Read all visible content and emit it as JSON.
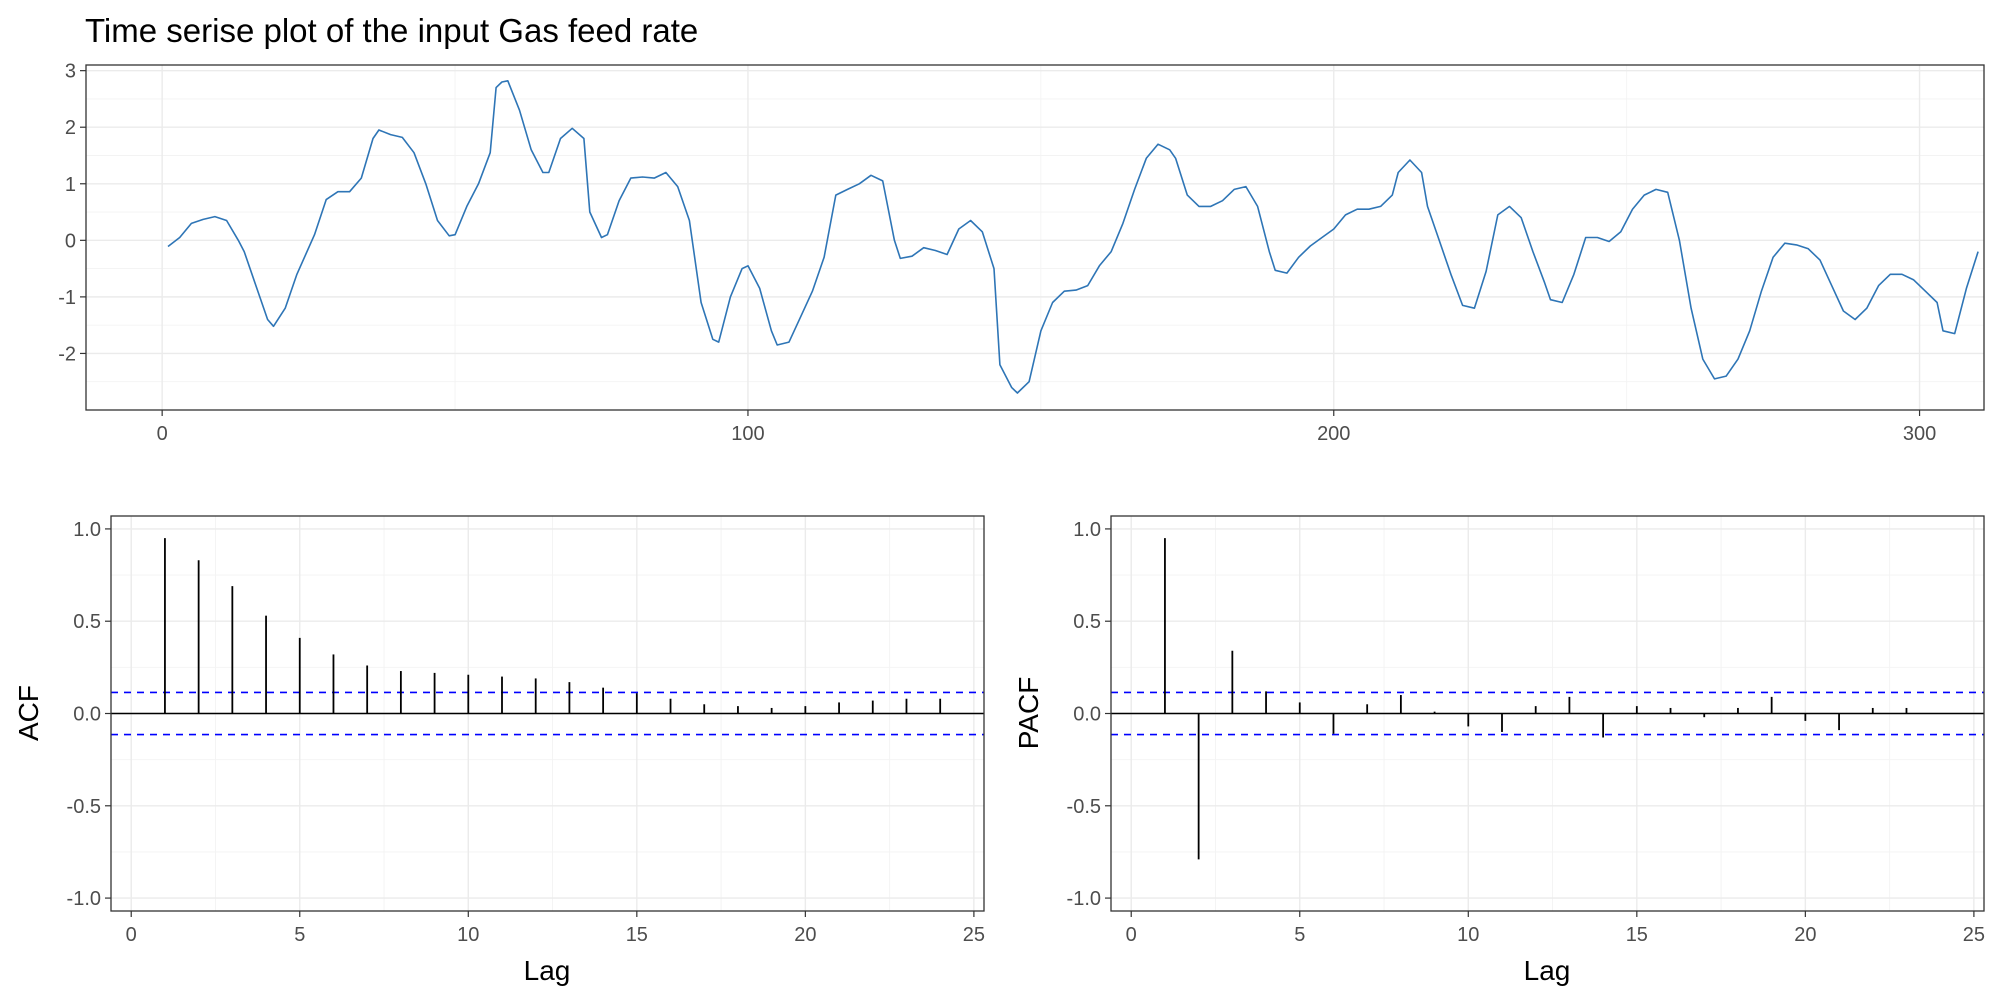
{
  "chart_data": [
    {
      "type": "line",
      "title": "Time serise plot of the input Gas feed rate",
      "xlabel": "",
      "ylabel": "",
      "xlim": [
        -13,
        311
      ],
      "ylim": [
        -3,
        3.1
      ],
      "x_ticks": [
        "0",
        "100",
        "200",
        "300"
      ],
      "y_ticks": [
        "-2",
        "-1",
        "0",
        "1",
        "2",
        "3"
      ],
      "grid": true,
      "series": [
        {
          "color": "#2e75b6",
          "points": [
            [
              1,
              -0.11
            ],
            [
              3,
              0.05
            ],
            [
              5,
              0.3
            ],
            [
              7,
              0.37
            ],
            [
              9,
              0.42
            ],
            [
              11,
              0.35
            ],
            [
              13,
              0.0
            ],
            [
              14,
              -0.2
            ],
            [
              16,
              -0.8
            ],
            [
              18,
              -1.4
            ],
            [
              19,
              -1.52
            ],
            [
              21,
              -1.2
            ],
            [
              23,
              -0.6
            ],
            [
              26,
              0.1
            ],
            [
              28,
              0.72
            ],
            [
              30,
              0.86
            ],
            [
              32,
              0.86
            ],
            [
              34,
              1.1
            ],
            [
              36,
              1.8
            ],
            [
              37,
              1.95
            ],
            [
              39,
              1.87
            ],
            [
              41,
              1.82
            ],
            [
              43,
              1.55
            ],
            [
              45,
              1.0
            ],
            [
              47,
              0.35
            ],
            [
              49,
              0.08
            ],
            [
              50,
              0.1
            ],
            [
              52,
              0.6
            ],
            [
              54,
              1.0
            ],
            [
              56,
              1.55
            ],
            [
              57,
              2.7
            ],
            [
              58,
              2.8
            ],
            [
              59,
              2.82
            ],
            [
              61,
              2.3
            ],
            [
              63,
              1.6
            ],
            [
              65,
              1.2
            ],
            [
              66,
              1.2
            ],
            [
              68,
              1.8
            ],
            [
              70,
              1.98
            ],
            [
              72,
              1.8
            ],
            [
              73,
              0.5
            ],
            [
              75,
              0.05
            ],
            [
              76,
              0.1
            ],
            [
              78,
              0.7
            ],
            [
              80,
              1.1
            ],
            [
              82,
              1.12
            ],
            [
              84,
              1.1
            ],
            [
              86,
              1.2
            ],
            [
              88,
              0.95
            ],
            [
              90,
              0.35
            ],
            [
              92,
              -1.1
            ],
            [
              94,
              -1.75
            ],
            [
              95,
              -1.8
            ],
            [
              97,
              -1.0
            ],
            [
              99,
              -0.5
            ],
            [
              100,
              -0.45
            ],
            [
              102,
              -0.85
            ],
            [
              104,
              -1.6
            ],
            [
              105,
              -1.85
            ],
            [
              107,
              -1.8
            ],
            [
              109,
              -1.35
            ],
            [
              111,
              -0.9
            ],
            [
              113,
              -0.3
            ],
            [
              115,
              0.8
            ],
            [
              117,
              0.9
            ],
            [
              119,
              1.0
            ],
            [
              121,
              1.15
            ],
            [
              123,
              1.05
            ],
            [
              125,
              0.0
            ],
            [
              126,
              -0.32
            ],
            [
              128,
              -0.28
            ],
            [
              130,
              -0.13
            ],
            [
              132,
              -0.18
            ],
            [
              134,
              -0.25
            ],
            [
              136,
              0.2
            ],
            [
              138,
              0.35
            ],
            [
              140,
              0.15
            ],
            [
              142,
              -0.5
            ],
            [
              143,
              -2.2
            ],
            [
              145,
              -2.6
            ],
            [
              146,
              -2.7
            ],
            [
              148,
              -2.5
            ],
            [
              150,
              -1.6
            ],
            [
              152,
              -1.1
            ],
            [
              154,
              -0.9
            ],
            [
              156,
              -0.88
            ],
            [
              158,
              -0.8
            ],
            [
              160,
              -0.45
            ],
            [
              162,
              -0.2
            ],
            [
              164,
              0.3
            ],
            [
              166,
              0.9
            ],
            [
              168,
              1.45
            ],
            [
              170,
              1.7
            ],
            [
              172,
              1.6
            ],
            [
              173,
              1.45
            ],
            [
              175,
              0.8
            ],
            [
              177,
              0.6
            ],
            [
              179,
              0.6
            ],
            [
              181,
              0.7
            ],
            [
              183,
              0.9
            ],
            [
              185,
              0.95
            ],
            [
              187,
              0.6
            ],
            [
              189,
              -0.2
            ],
            [
              190,
              -0.53
            ],
            [
              192,
              -0.58
            ],
            [
              194,
              -0.3
            ],
            [
              196,
              -0.1
            ],
            [
              198,
              0.05
            ],
            [
              200,
              0.2
            ],
            [
              202,
              0.45
            ],
            [
              204,
              0.55
            ],
            [
              206,
              0.55
            ],
            [
              208,
              0.6
            ],
            [
              210,
              0.8
            ],
            [
              211,
              1.2
            ],
            [
              213,
              1.42
            ],
            [
              215,
              1.2
            ],
            [
              216,
              0.6
            ],
            [
              218,
              0.0
            ],
            [
              220,
              -0.6
            ],
            [
              222,
              -1.15
            ],
            [
              224,
              -1.2
            ],
            [
              226,
              -0.55
            ],
            [
              228,
              0.45
            ],
            [
              230,
              0.6
            ],
            [
              232,
              0.4
            ],
            [
              234,
              -0.2
            ],
            [
              236,
              -0.75
            ],
            [
              237,
              -1.05
            ],
            [
              239,
              -1.1
            ],
            [
              241,
              -0.6
            ],
            [
              243,
              0.05
            ],
            [
              245,
              0.05
            ],
            [
              247,
              -0.02
            ],
            [
              249,
              0.15
            ],
            [
              251,
              0.55
            ],
            [
              253,
              0.8
            ],
            [
              255,
              0.9
            ],
            [
              257,
              0.85
            ],
            [
              259,
              0.0
            ],
            [
              261,
              -1.2
            ],
            [
              263,
              -2.1
            ],
            [
              265,
              -2.45
            ],
            [
              267,
              -2.4
            ],
            [
              269,
              -2.1
            ],
            [
              271,
              -1.6
            ],
            [
              273,
              -0.9
            ],
            [
              275,
              -0.3
            ],
            [
              277,
              -0.05
            ],
            [
              279,
              -0.08
            ],
            [
              281,
              -0.15
            ],
            [
              283,
              -0.35
            ],
            [
              285,
              -0.8
            ],
            [
              287,
              -1.25
            ],
            [
              289,
              -1.4
            ],
            [
              291,
              -1.2
            ],
            [
              293,
              -0.8
            ],
            [
              295,
              -0.6
            ],
            [
              297,
              -0.6
            ],
            [
              299,
              -0.7
            ],
            [
              301,
              -0.9
            ],
            [
              303,
              -1.1
            ],
            [
              304,
              -1.6
            ],
            [
              306,
              -1.65
            ],
            [
              308,
              -0.85
            ],
            [
              310,
              -0.2
            ]
          ]
        }
      ]
    },
    {
      "type": "bar",
      "title": "",
      "xlabel": "Lag",
      "ylabel": "ACF",
      "xlim": [
        -0.6,
        25.3
      ],
      "ylim": [
        -1.07,
        1.07
      ],
      "x_ticks": [
        "0",
        "5",
        "10",
        "15",
        "20",
        "25"
      ],
      "y_ticks": [
        "-1.0",
        "-0.5",
        "0.0",
        "0.5",
        "1.0"
      ],
      "grid": true,
      "ci": 0.114,
      "ci_color": "#0000ff",
      "lags": [
        1,
        2,
        3,
        4,
        5,
        6,
        7,
        8,
        9,
        10,
        11,
        12,
        13,
        14,
        15,
        16,
        17,
        18,
        19,
        20,
        21,
        22,
        23,
        24
      ],
      "values": [
        0.95,
        0.83,
        0.69,
        0.53,
        0.41,
        0.32,
        0.26,
        0.23,
        0.22,
        0.21,
        0.2,
        0.19,
        0.17,
        0.14,
        0.11,
        0.08,
        0.05,
        0.04,
        0.03,
        0.04,
        0.06,
        0.07,
        0.08,
        0.08
      ]
    },
    {
      "type": "bar",
      "title": "",
      "xlabel": "Lag",
      "ylabel": "PACF",
      "xlim": [
        -0.6,
        25.3
      ],
      "ylim": [
        -1.07,
        1.07
      ],
      "x_ticks": [
        "0",
        "5",
        "10",
        "15",
        "20",
        "25"
      ],
      "y_ticks": [
        "-1.0",
        "-0.5",
        "0.0",
        "0.5",
        "1.0"
      ],
      "grid": true,
      "ci": 0.114,
      "ci_color": "#0000ff",
      "lags": [
        1,
        2,
        3,
        4,
        5,
        6,
        7,
        8,
        9,
        10,
        11,
        12,
        13,
        14,
        15,
        16,
        17,
        18,
        19,
        20,
        21,
        22,
        23
      ],
      "values": [
        0.95,
        -0.79,
        0.34,
        0.12,
        0.06,
        -0.11,
        0.05,
        0.1,
        0.01,
        -0.07,
        -0.1,
        0.04,
        0.09,
        -0.13,
        0.04,
        0.03,
        -0.02,
        0.03,
        0.09,
        -0.04,
        -0.09,
        0.03,
        0.03
      ]
    }
  ]
}
